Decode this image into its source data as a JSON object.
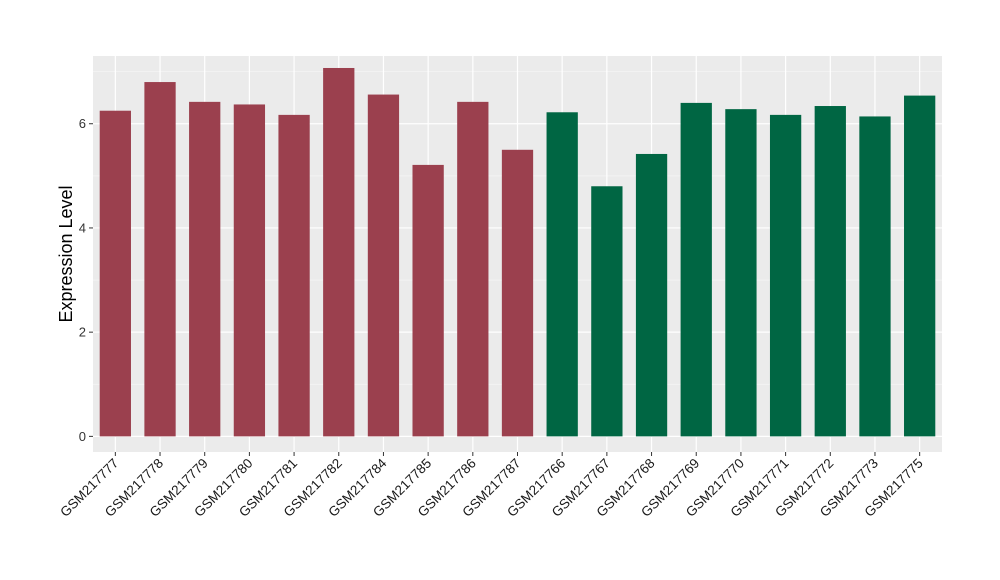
{
  "chart_data": {
    "type": "bar",
    "title": "",
    "xlabel": "",
    "ylabel": "Expression Level",
    "ylim": [
      -0.3,
      7.3
    ],
    "yticks": [
      0,
      2,
      4,
      6
    ],
    "grid": true,
    "legend": "none",
    "categories": [
      "GSM217777",
      "GSM217778",
      "GSM217779",
      "GSM217780",
      "GSM217781",
      "GSM217782",
      "GSM217784",
      "GSM217785",
      "GSM217786",
      "GSM217787",
      "GSM217766",
      "GSM217767",
      "GSM217768",
      "GSM217769",
      "GSM217770",
      "GSM217771",
      "GSM217772",
      "GSM217773",
      "GSM217775"
    ],
    "values": [
      6.25,
      6.8,
      6.42,
      6.37,
      6.17,
      7.07,
      6.56,
      5.21,
      6.42,
      5.5,
      6.22,
      4.8,
      5.42,
      6.4,
      6.28,
      6.17,
      6.34,
      6.14,
      6.54
    ],
    "groups": [
      {
        "color": "#9b404e",
        "count": 10
      },
      {
        "color": "#006643",
        "count": 9
      }
    ],
    "colors": {
      "panel_background": "#ebebeb",
      "grid_major": "#ffffff",
      "grid_minor": "#f5f5f5"
    }
  }
}
